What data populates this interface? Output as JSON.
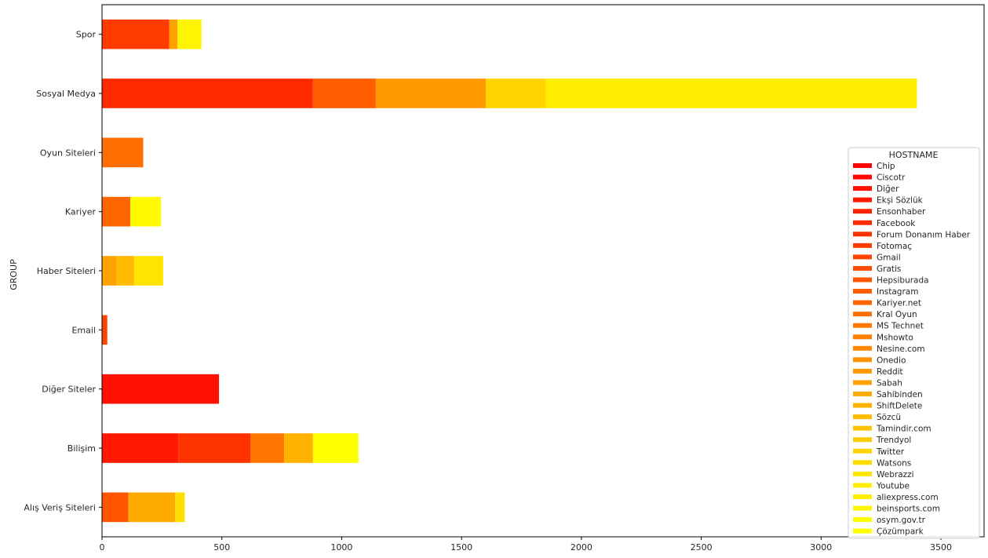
{
  "chart_data": {
    "type": "bar",
    "orientation": "horizontal",
    "stacked": true,
    "ylabel": "GROUP",
    "xlabel": "",
    "xlim": [
      0,
      3680
    ],
    "xticks": [
      0,
      500,
      1000,
      1500,
      2000,
      2500,
      3000,
      3500
    ],
    "grid": false,
    "legend": {
      "title": "HOSTNAME",
      "placement": "right"
    },
    "categories": [
      "Spor",
      "Sosyal Medya",
      "Oyun Siteleri",
      "Kariyer",
      "Haber Siteleri",
      "Email",
      "Diğer Siteler",
      "Bilişim",
      "Alış Veriş Siteleri"
    ],
    "series": [
      {
        "name": "Chip",
        "color": "#ff0000",
        "values": [
          0,
          0,
          0,
          0,
          0,
          0,
          0,
          0,
          0
        ]
      },
      {
        "name": "Ciscotr",
        "color": "#ff0800",
        "values": [
          0,
          0,
          0,
          0,
          0,
          0,
          0,
          0,
          0
        ]
      },
      {
        "name": "Diğer",
        "color": "#ff1100",
        "values": [
          0,
          0,
          0,
          0,
          0,
          0,
          488,
          0,
          0
        ]
      },
      {
        "name": "Ekşi Sözlük",
        "color": "#ff1900",
        "values": [
          0,
          0,
          0,
          0,
          0,
          0,
          0,
          318,
          0
        ]
      },
      {
        "name": "Ensonhaber",
        "color": "#ff2200",
        "values": [
          0,
          0,
          0,
          0,
          0,
          0,
          0,
          0,
          0
        ]
      },
      {
        "name": "Facebook",
        "color": "#ff2a00",
        "values": [
          0,
          880,
          0,
          0,
          0,
          0,
          0,
          0,
          0
        ]
      },
      {
        "name": "Forum Donanım Haber",
        "color": "#ff3300",
        "values": [
          0,
          0,
          0,
          0,
          0,
          0,
          0,
          302,
          0
        ]
      },
      {
        "name": "Fotomaç",
        "color": "#ff3b00",
        "values": [
          280,
          0,
          0,
          0,
          0,
          0,
          0,
          0,
          0
        ]
      },
      {
        "name": "Gmail",
        "color": "#ff4400",
        "values": [
          0,
          0,
          0,
          0,
          0,
          22,
          0,
          0,
          0
        ]
      },
      {
        "name": "Gratis",
        "color": "#ff4c00",
        "values": [
          0,
          0,
          0,
          0,
          0,
          0,
          0,
          0,
          0
        ]
      },
      {
        "name": "Hepsiburada",
        "color": "#ff5500",
        "values": [
          0,
          0,
          0,
          0,
          0,
          0,
          0,
          0,
          110
        ]
      },
      {
        "name": "Instagram",
        "color": "#ff5d00",
        "values": [
          0,
          262,
          0,
          0,
          0,
          0,
          0,
          0,
          0
        ]
      },
      {
        "name": "Kariyer.net",
        "color": "#ff6600",
        "values": [
          0,
          0,
          0,
          118,
          0,
          0,
          0,
          0,
          0
        ]
      },
      {
        "name": "Kral Oyun",
        "color": "#ff6e00",
        "values": [
          0,
          0,
          172,
          0,
          0,
          0,
          0,
          0,
          0
        ]
      },
      {
        "name": "MS Technet",
        "color": "#ff7700",
        "values": [
          0,
          0,
          0,
          0,
          0,
          0,
          0,
          140,
          0
        ]
      },
      {
        "name": "Mshowto",
        "color": "#ff7f00",
        "values": [
          0,
          0,
          0,
          0,
          0,
          0,
          0,
          0,
          0
        ]
      },
      {
        "name": "Nesine.com",
        "color": "#ff8800",
        "values": [
          0,
          0,
          0,
          0,
          0,
          0,
          0,
          0,
          0
        ]
      },
      {
        "name": "Onedio",
        "color": "#ff9000",
        "values": [
          0,
          0,
          0,
          0,
          0,
          0,
          0,
          0,
          0
        ]
      },
      {
        "name": "Reddit",
        "color": "#ff9900",
        "values": [
          0,
          460,
          0,
          0,
          0,
          0,
          0,
          0,
          0
        ]
      },
      {
        "name": "Sabah",
        "color": "#ffa100",
        "values": [
          35,
          0,
          0,
          0,
          60,
          0,
          0,
          0,
          0
        ]
      },
      {
        "name": "Sahibinden",
        "color": "#ffaa00",
        "values": [
          0,
          0,
          0,
          0,
          0,
          0,
          0,
          0,
          195
        ]
      },
      {
        "name": "ShiftDelete",
        "color": "#ffb200",
        "values": [
          0,
          0,
          0,
          0,
          0,
          0,
          0,
          120,
          0
        ]
      },
      {
        "name": "Sözcü",
        "color": "#ffbb00",
        "values": [
          0,
          0,
          0,
          0,
          75,
          0,
          0,
          0,
          0
        ]
      },
      {
        "name": "Tamindir.com",
        "color": "#ffc300",
        "values": [
          0,
          0,
          0,
          0,
          0,
          0,
          0,
          0,
          0
        ]
      },
      {
        "name": "Trendyol",
        "color": "#ffcc00",
        "values": [
          0,
          0,
          0,
          0,
          0,
          0,
          0,
          0,
          0
        ]
      },
      {
        "name": "Twitter",
        "color": "#ffd400",
        "values": [
          0,
          250,
          0,
          0,
          0,
          0,
          0,
          0,
          0
        ]
      },
      {
        "name": "Watsons",
        "color": "#ffdd00",
        "values": [
          0,
          0,
          0,
          0,
          0,
          0,
          0,
          0,
          40
        ]
      },
      {
        "name": "Webrazzi",
        "color": "#ffe500",
        "values": [
          0,
          0,
          0,
          0,
          120,
          0,
          0,
          0,
          0
        ]
      },
      {
        "name": "Youtube",
        "color": "#ffee00",
        "values": [
          0,
          1548,
          0,
          0,
          0,
          0,
          0,
          0,
          0
        ]
      },
      {
        "name": "aliexpress.com",
        "color": "#fff000",
        "values": [
          0,
          0,
          0,
          0,
          0,
          0,
          0,
          0,
          0
        ]
      },
      {
        "name": "beinsports.com",
        "color": "#fff500",
        "values": [
          100,
          0,
          0,
          0,
          0,
          0,
          0,
          0,
          0
        ]
      },
      {
        "name": "osym.gov.tr",
        "color": "#fffa00",
        "values": [
          0,
          0,
          0,
          128,
          0,
          0,
          0,
          0,
          0
        ]
      },
      {
        "name": "Çözümpark",
        "color": "#ffff00",
        "values": [
          0,
          0,
          0,
          0,
          0,
          0,
          0,
          190,
          0
        ]
      }
    ]
  }
}
